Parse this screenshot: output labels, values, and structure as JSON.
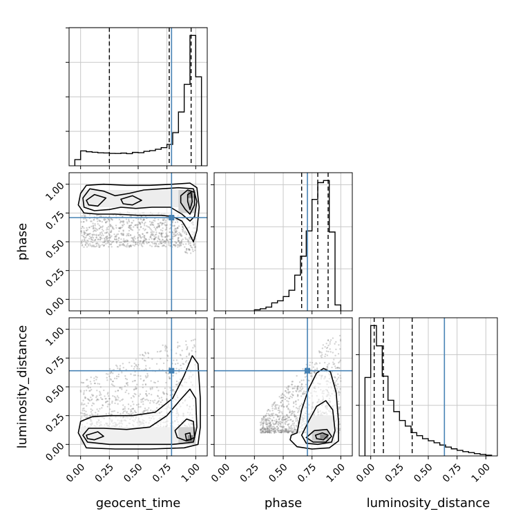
{
  "chart_data": {
    "type": "corner",
    "parameters": [
      "geocent_time",
      "phase",
      "luminosity_distance"
    ],
    "tick_labels": [
      "0.00",
      "0.25",
      "0.50",
      "0.75",
      "1.00"
    ],
    "axis_range": [
      -0.1,
      1.1
    ],
    "grid": true,
    "truths": {
      "geocent_time": 0.79,
      "phase": 0.71,
      "luminosity_distance": 0.64
    },
    "colors": {
      "truth": "#4682b4",
      "hist": "#000000",
      "grid": "#c8c8c8",
      "scatter": "#7f7f7f"
    },
    "histograms": [
      {
        "parameter": "geocent_time",
        "bin_edges": [
          -0.05,
          0.0,
          0.05,
          0.1,
          0.15,
          0.2,
          0.25,
          0.3,
          0.35,
          0.4,
          0.45,
          0.5,
          0.55,
          0.6,
          0.65,
          0.7,
          0.75,
          0.8,
          0.85,
          0.9,
          0.95,
          1.0,
          1.05
        ],
        "counts": [
          45,
          108,
          102,
          98,
          94,
          93,
          90,
          89,
          92,
          88,
          97,
          95,
          105,
          110,
          120,
          132,
          155,
          240,
          390,
          590,
          945,
          645
        ],
        "quantiles": [
          0.25,
          0.77,
          0.96
        ]
      },
      {
        "parameter": "phase",
        "bin_edges": [
          0.25,
          0.3,
          0.35,
          0.4,
          0.45,
          0.5,
          0.55,
          0.6,
          0.65,
          0.7,
          0.75,
          0.8,
          0.85,
          0.9,
          0.95,
          1.0
        ],
        "counts": [
          5,
          10,
          18,
          38,
          48,
          68,
          98,
          170,
          260,
          380,
          530,
          610,
          620,
          375,
          28
        ],
        "quantiles": [
          0.66,
          0.8,
          0.89
        ]
      },
      {
        "parameter": "luminosity_distance",
        "bin_edges": [
          -0.05,
          0.0,
          0.05,
          0.1,
          0.15,
          0.2,
          0.25,
          0.3,
          0.35,
          0.4,
          0.45,
          0.5,
          0.55,
          0.6,
          0.65,
          0.7,
          0.75,
          0.8,
          0.85,
          0.9,
          0.95,
          1.0,
          1.05
        ],
        "counts": [
          310,
          515,
          435,
          315,
          220,
          175,
          140,
          118,
          92,
          80,
          68,
          60,
          52,
          43,
          35,
          28,
          22,
          17,
          13,
          9,
          6,
          3
        ],
        "quantiles": [
          0.03,
          0.11,
          0.36
        ]
      }
    ],
    "density_panels": [
      {
        "x": "geocent_time",
        "y": "phase",
        "contours": [
          [
            [
              0.0,
              0.92
            ],
            [
              0.05,
              0.99
            ],
            [
              0.2,
              1.0
            ],
            [
              0.4,
              0.99
            ],
            [
              0.6,
              0.99
            ],
            [
              0.8,
              1.0
            ],
            [
              0.95,
              1.01
            ],
            [
              1.01,
              0.97
            ],
            [
              1.03,
              0.8
            ],
            [
              1.01,
              0.6
            ],
            [
              0.98,
              0.5
            ],
            [
              0.93,
              0.6
            ],
            [
              0.88,
              0.68
            ],
            [
              0.8,
              0.72
            ],
            [
              0.7,
              0.73
            ],
            [
              0.5,
              0.73
            ],
            [
              0.3,
              0.74
            ],
            [
              0.15,
              0.74
            ],
            [
              0.03,
              0.75
            ],
            [
              -0.02,
              0.82
            ]
          ],
          [
            [
              0.02,
              0.88
            ],
            [
              0.08,
              0.96
            ],
            [
              0.2,
              0.94
            ],
            [
              0.3,
              0.9
            ],
            [
              0.42,
              0.92
            ],
            [
              0.55,
              0.95
            ],
            [
              0.7,
              0.96
            ],
            [
              0.85,
              0.97
            ],
            [
              0.98,
              0.96
            ],
            [
              1.01,
              0.85
            ],
            [
              0.99,
              0.72
            ],
            [
              0.95,
              0.68
            ],
            [
              0.88,
              0.74
            ],
            [
              0.78,
              0.8
            ],
            [
              0.62,
              0.8
            ],
            [
              0.48,
              0.79
            ],
            [
              0.35,
              0.8
            ],
            [
              0.25,
              0.78
            ],
            [
              0.12,
              0.77
            ],
            [
              0.03,
              0.8
            ]
          ],
          [
            [
              0.05,
              0.86
            ],
            [
              0.12,
              0.91
            ],
            [
              0.22,
              0.88
            ],
            [
              0.15,
              0.81
            ],
            [
              0.07,
              0.82
            ]
          ],
          [
            [
              0.35,
              0.87
            ],
            [
              0.45,
              0.9
            ],
            [
              0.53,
              0.86
            ],
            [
              0.45,
              0.82
            ],
            [
              0.37,
              0.83
            ]
          ],
          [
            [
              0.87,
              0.9
            ],
            [
              0.93,
              0.95
            ],
            [
              0.99,
              0.93
            ],
            [
              0.99,
              0.82
            ],
            [
              0.95,
              0.74
            ],
            [
              0.91,
              0.78
            ],
            [
              0.87,
              0.84
            ]
          ],
          [
            [
              0.93,
              0.91
            ],
            [
              0.96,
              0.93
            ],
            [
              0.97,
              0.85
            ],
            [
              0.95,
              0.78
            ],
            [
              0.93,
              0.85
            ]
          ]
        ],
        "cells": [
          {
            "x": 0.0,
            "y": 0.8,
            "w": 0.9,
            "h": 0.15,
            "shade": 0.1
          },
          {
            "x": 0.85,
            "y": 0.75,
            "w": 0.15,
            "h": 0.2,
            "shade": 0.35
          },
          {
            "x": 0.93,
            "y": 0.88,
            "w": 0.05,
            "h": 0.06,
            "shade": 1.0
          },
          {
            "x": 0.94,
            "y": 0.81,
            "w": 0.03,
            "h": 0.05,
            "shade": 0.6
          }
        ],
        "scatter_region": {
          "x": [
            0.0,
            1.0
          ],
          "y": [
            0.35,
            0.76
          ],
          "count": 850
        }
      },
      {
        "x": "geocent_time",
        "y": "luminosity_distance",
        "contours": [
          [
            [
              -0.02,
              0.1
            ],
            [
              0.0,
              0.2
            ],
            [
              0.1,
              0.24
            ],
            [
              0.25,
              0.25
            ],
            [
              0.45,
              0.25
            ],
            [
              0.65,
              0.28
            ],
            [
              0.8,
              0.4
            ],
            [
              0.9,
              0.6
            ],
            [
              0.97,
              0.77
            ],
            [
              1.02,
              0.7
            ],
            [
              1.04,
              0.4
            ],
            [
              1.04,
              0.15
            ],
            [
              1.02,
              0.0
            ],
            [
              0.9,
              -0.03
            ],
            [
              0.6,
              -0.04
            ],
            [
              0.3,
              -0.04
            ],
            [
              0.05,
              -0.03
            ]
          ],
          [
            [
              0.02,
              0.08
            ],
            [
              0.07,
              0.14
            ],
            [
              0.2,
              0.14
            ],
            [
              0.4,
              0.13
            ],
            [
              0.6,
              0.15
            ],
            [
              0.75,
              0.25
            ],
            [
              0.86,
              0.38
            ],
            [
              0.95,
              0.48
            ],
            [
              1.0,
              0.4
            ],
            [
              1.01,
              0.15
            ],
            [
              0.98,
              0.02
            ],
            [
              0.8,
              0.0
            ],
            [
              0.5,
              0.0
            ],
            [
              0.25,
              0.0
            ],
            [
              0.06,
              0.02
            ]
          ],
          [
            [
              0.05,
              0.08
            ],
            [
              0.15,
              0.11
            ],
            [
              0.2,
              0.07
            ],
            [
              0.12,
              0.04
            ],
            [
              0.06,
              0.05
            ]
          ],
          [
            [
              0.82,
              0.12
            ],
            [
              0.92,
              0.22
            ],
            [
              0.98,
              0.2
            ],
            [
              0.99,
              0.06
            ],
            [
              0.92,
              0.03
            ],
            [
              0.84,
              0.06
            ]
          ],
          [
            [
              0.91,
              0.09
            ],
            [
              0.95,
              0.1
            ],
            [
              0.96,
              0.04
            ],
            [
              0.92,
              0.04
            ]
          ]
        ],
        "cells": [
          {
            "x": 0.0,
            "y": 0.0,
            "w": 1.0,
            "h": 0.15,
            "shade": 0.08
          },
          {
            "x": 0.85,
            "y": 0.0,
            "w": 0.15,
            "h": 0.15,
            "shade": 0.35
          },
          {
            "x": 0.93,
            "y": 0.02,
            "w": 0.05,
            "h": 0.06,
            "shade": 1.0
          }
        ],
        "scatter_region": {
          "x": [
            0.0,
            1.0
          ],
          "y": [
            0.1,
            1.0
          ],
          "count": 1000
        }
      },
      {
        "x": "phase",
        "y": "luminosity_distance",
        "contours": [
          [
            [
              0.62,
              0.1
            ],
            [
              0.66,
              0.3
            ],
            [
              0.72,
              0.48
            ],
            [
              0.79,
              0.62
            ],
            [
              0.85,
              0.66
            ],
            [
              0.91,
              0.63
            ],
            [
              0.96,
              0.45
            ],
            [
              0.98,
              0.2
            ],
            [
              0.98,
              0.03
            ],
            [
              0.9,
              -0.03
            ],
            [
              0.75,
              -0.04
            ],
            [
              0.62,
              -0.02
            ],
            [
              0.56,
              0.04
            ],
            [
              0.57,
              0.08
            ]
          ],
          [
            [
              0.66,
              0.08
            ],
            [
              0.72,
              0.2
            ],
            [
              0.79,
              0.33
            ],
            [
              0.87,
              0.38
            ],
            [
              0.93,
              0.3
            ],
            [
              0.95,
              0.12
            ],
            [
              0.92,
              0.02
            ],
            [
              0.8,
              0.0
            ],
            [
              0.7,
              0.01
            ]
          ],
          [
            [
              0.7,
              0.06
            ],
            [
              0.77,
              0.12
            ],
            [
              0.88,
              0.13
            ],
            [
              0.92,
              0.07
            ],
            [
              0.87,
              0.02
            ],
            [
              0.76,
              0.02
            ]
          ],
          [
            [
              0.78,
              0.08
            ],
            [
              0.84,
              0.1
            ],
            [
              0.89,
              0.08
            ],
            [
              0.85,
              0.04
            ],
            [
              0.79,
              0.05
            ]
          ]
        ],
        "cells": [
          {
            "x": 0.7,
            "y": 0.0,
            "w": 0.25,
            "h": 0.25,
            "shade": 0.1
          },
          {
            "x": 0.75,
            "y": 0.02,
            "w": 0.15,
            "h": 0.1,
            "shade": 0.4
          },
          {
            "x": 0.82,
            "y": 0.05,
            "w": 0.07,
            "h": 0.04,
            "shade": 1.0
          }
        ],
        "scatter_region": {
          "x": [
            0.3,
            1.0
          ],
          "y": [
            0.1,
            0.95
          ],
          "count": 1000
        }
      }
    ]
  }
}
